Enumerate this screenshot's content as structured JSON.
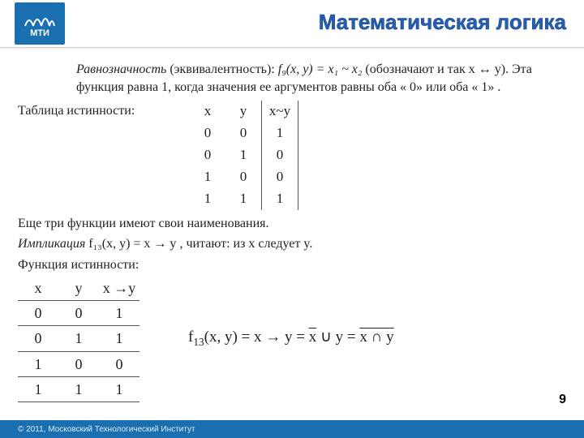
{
  "header": {
    "logo_text": "МТИ",
    "title": "Математическая логика",
    "title_color": "#2a5db0"
  },
  "body": {
    "p1_prefix": "Равнозначность",
    "p1_mid": " (эквивалентность): ",
    "p1_formula": "f₉(x, y) = x₁ ~ x₂",
    "p1_suffix": " (обозначают и так x ↔ y). Эта функция равна 1, когда значения ее аргументов равны оба « 0» или оба « 1» .",
    "table1_label": "Таблица истинности:",
    "table1": {
      "columns": [
        "x",
        "y",
        "x~y"
      ],
      "rows": [
        [
          "0",
          "0",
          "1"
        ],
        [
          "0",
          "1",
          "0"
        ],
        [
          "1",
          "0",
          "0"
        ],
        [
          "1",
          "1",
          "1"
        ]
      ]
    },
    "p2": "Еще три функции имеют свои наименования.",
    "p3_prefix": "Импликация ",
    "p3_formula": "f₁₃(x, y) = x → y",
    "p3_suffix": " , читают: из x следует y.",
    "p4": "Функция истинности:",
    "table2": {
      "columns": [
        "x",
        "y",
        "x →y"
      ],
      "rows": [
        [
          "0",
          "0",
          "1"
        ],
        [
          "0",
          "1",
          "1"
        ],
        [
          "1",
          "0",
          "0"
        ],
        [
          "1",
          "1",
          "1"
        ]
      ]
    },
    "formula_right_html": "f<sub>13</sub>(x, y) = x → y = <span class='ov'>x</span> ∪ y = <span class='ov'><span class='ov' style='text-decoration:none'>x ∩ </span><span class='ov'>y</span></span>"
  },
  "page_number": "9",
  "footer": "© 2011, Московский Технологический Институт"
}
